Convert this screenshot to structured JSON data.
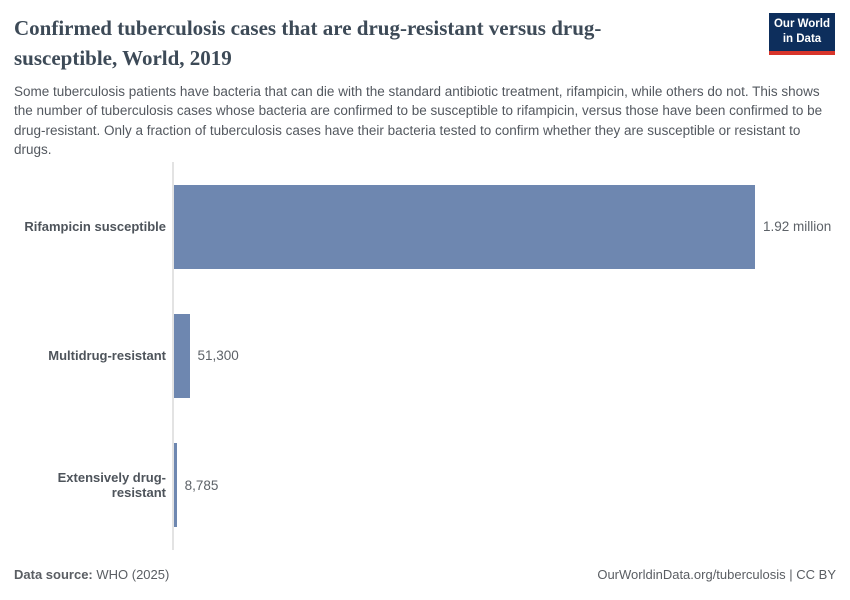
{
  "header": {
    "title": "Confirmed tuberculosis cases that are drug-resistant versus drug-susceptible, World, 2019",
    "subtitle": "Some tuberculosis patients have bacteria that can die with the standard antibiotic treatment, rifampicin, while others do not. This shows the number of tuberculosis cases whose bacteria are confirmed to be susceptible to rifampicin, versus those have been confirmed to be drug-resistant. Only a fraction of tuberculosis cases have their bacteria tested to confirm whether they are susceptible or resistant to drugs."
  },
  "logo": {
    "line1": "Our World",
    "line2": "in Data",
    "bg_color": "#0d2e5c",
    "accent_color": "#d8352b"
  },
  "chart_data": {
    "type": "bar",
    "orientation": "horizontal",
    "title": "Confirmed tuberculosis cases that are drug-resistant versus drug-susceptible, World, 2019",
    "categories": [
      "Rifampicin susceptible",
      "Multidrug-resistant",
      "Extensively drug-resistant"
    ],
    "values": [
      1920000,
      51300,
      8785
    ],
    "value_labels": [
      "1.92 million",
      "51,300",
      "8,785"
    ],
    "bar_color": "#6e87b0",
    "axis_line_color": "#e3e3e3",
    "xlim": [
      0,
      1920000
    ],
    "grid": false,
    "legend": "none"
  },
  "footer": {
    "source_label": "Data source:",
    "source_value": " WHO (2025)",
    "link": "OurWorldinData.org/tuberculosis | CC BY"
  }
}
